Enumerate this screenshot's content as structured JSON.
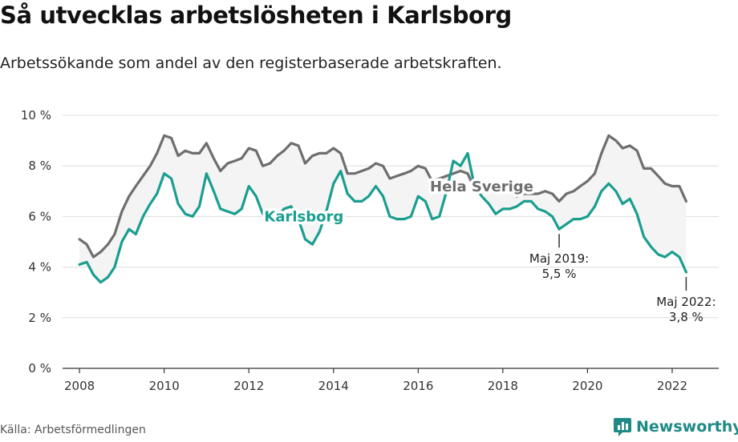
{
  "header": {
    "title": "Så utvecklas arbetslösheten i Karlsborg",
    "subtitle": "Arbetssökande som andel av den registerbaserade arbetskraften."
  },
  "footer": {
    "source": "Källa: Arbetsförmedlingen",
    "brand": "Newsworthy"
  },
  "chart_data": {
    "type": "line",
    "title": "Så utvecklas arbetslösheten i Karlsborg",
    "subtitle": "Arbetssökande som andel av den registerbaserade arbetskraften.",
    "xlabel": "",
    "ylabel": "",
    "xlim": [
      2007.6,
      2023.1
    ],
    "ylim": [
      0,
      10
    ],
    "grid": true,
    "yticks": [
      0,
      2,
      4,
      6,
      8,
      10
    ],
    "ytick_labels": [
      "0 %",
      "2 %",
      "4 %",
      "6 %",
      "8 %",
      "10 %"
    ],
    "xticks": [
      2008,
      2010,
      2012,
      2014,
      2016,
      2018,
      2020,
      2022
    ],
    "xtick_labels": [
      "2008",
      "2010",
      "2012",
      "2014",
      "2016",
      "2018",
      "2020",
      "2022"
    ],
    "shaded_between_series": true,
    "series": [
      {
        "name": "Hela Sverige",
        "label": "Hela Sverige",
        "color": "#6e6e6e",
        "points": [
          [
            2008.0,
            5.1
          ],
          [
            2008.17,
            4.9
          ],
          [
            2008.33,
            4.4
          ],
          [
            2008.5,
            4.6
          ],
          [
            2008.67,
            4.9
          ],
          [
            2008.83,
            5.3
          ],
          [
            2009.0,
            6.2
          ],
          [
            2009.17,
            6.8
          ],
          [
            2009.33,
            7.2
          ],
          [
            2009.5,
            7.6
          ],
          [
            2009.67,
            8.0
          ],
          [
            2009.83,
            8.5
          ],
          [
            2010.0,
            9.2
          ],
          [
            2010.17,
            9.1
          ],
          [
            2010.33,
            8.4
          ],
          [
            2010.5,
            8.6
          ],
          [
            2010.67,
            8.5
          ],
          [
            2010.83,
            8.5
          ],
          [
            2011.0,
            8.9
          ],
          [
            2011.17,
            8.3
          ],
          [
            2011.33,
            7.8
          ],
          [
            2011.5,
            8.1
          ],
          [
            2011.67,
            8.2
          ],
          [
            2011.83,
            8.3
          ],
          [
            2012.0,
            8.7
          ],
          [
            2012.17,
            8.6
          ],
          [
            2012.33,
            8.0
          ],
          [
            2012.5,
            8.1
          ],
          [
            2012.67,
            8.4
          ],
          [
            2012.83,
            8.6
          ],
          [
            2013.0,
            8.9
          ],
          [
            2013.17,
            8.8
          ],
          [
            2013.33,
            8.1
          ],
          [
            2013.5,
            8.4
          ],
          [
            2013.67,
            8.5
          ],
          [
            2013.83,
            8.5
          ],
          [
            2014.0,
            8.7
          ],
          [
            2014.17,
            8.5
          ],
          [
            2014.33,
            7.7
          ],
          [
            2014.5,
            7.7
          ],
          [
            2014.67,
            7.8
          ],
          [
            2014.83,
            7.9
          ],
          [
            2015.0,
            8.1
          ],
          [
            2015.17,
            8.0
          ],
          [
            2015.33,
            7.5
          ],
          [
            2015.5,
            7.6
          ],
          [
            2015.67,
            7.7
          ],
          [
            2015.83,
            7.8
          ],
          [
            2016.0,
            8.0
          ],
          [
            2016.17,
            7.9
          ],
          [
            2016.33,
            7.4
          ],
          [
            2016.5,
            7.5
          ],
          [
            2016.67,
            7.6
          ],
          [
            2016.83,
            7.7
          ],
          [
            2017.0,
            7.8
          ],
          [
            2017.17,
            7.7
          ],
          [
            2017.33,
            7.1
          ],
          [
            2017.5,
            7.1
          ],
          [
            2017.67,
            7.1
          ],
          [
            2017.83,
            7.1
          ],
          [
            2018.0,
            7.2
          ],
          [
            2018.17,
            7.0
          ],
          [
            2018.33,
            6.8
          ],
          [
            2018.5,
            6.9
          ],
          [
            2018.67,
            6.9
          ],
          [
            2018.83,
            6.9
          ],
          [
            2019.0,
            7.0
          ],
          [
            2019.17,
            6.9
          ],
          [
            2019.33,
            6.6
          ],
          [
            2019.5,
            6.9
          ],
          [
            2019.67,
            7.0
          ],
          [
            2019.83,
            7.2
          ],
          [
            2020.0,
            7.4
          ],
          [
            2020.17,
            7.7
          ],
          [
            2020.33,
            8.5
          ],
          [
            2020.5,
            9.2
          ],
          [
            2020.67,
            9.0
          ],
          [
            2020.83,
            8.7
          ],
          [
            2021.0,
            8.8
          ],
          [
            2021.17,
            8.6
          ],
          [
            2021.33,
            7.9
          ],
          [
            2021.5,
            7.9
          ],
          [
            2021.67,
            7.6
          ],
          [
            2021.83,
            7.3
          ],
          [
            2022.0,
            7.2
          ],
          [
            2022.17,
            7.2
          ],
          [
            2022.33,
            6.6
          ]
        ]
      },
      {
        "name": "Karlsborg",
        "label": "Karlsborg",
        "color": "#1a9e90",
        "points": [
          [
            2008.0,
            4.1
          ],
          [
            2008.17,
            4.2
          ],
          [
            2008.33,
            3.7
          ],
          [
            2008.5,
            3.4
          ],
          [
            2008.67,
            3.6
          ],
          [
            2008.83,
            4.0
          ],
          [
            2009.0,
            5.0
          ],
          [
            2009.17,
            5.5
          ],
          [
            2009.33,
            5.3
          ],
          [
            2009.5,
            6.0
          ],
          [
            2009.67,
            6.5
          ],
          [
            2009.83,
            6.9
          ],
          [
            2010.0,
            7.7
          ],
          [
            2010.17,
            7.5
          ],
          [
            2010.33,
            6.5
          ],
          [
            2010.5,
            6.1
          ],
          [
            2010.67,
            6.0
          ],
          [
            2010.83,
            6.4
          ],
          [
            2011.0,
            7.7
          ],
          [
            2011.17,
            7.0
          ],
          [
            2011.33,
            6.3
          ],
          [
            2011.5,
            6.2
          ],
          [
            2011.67,
            6.1
          ],
          [
            2011.83,
            6.3
          ],
          [
            2012.0,
            7.2
          ],
          [
            2012.17,
            6.8
          ],
          [
            2012.33,
            6.1
          ],
          [
            2012.5,
            6.2
          ],
          [
            2012.67,
            6.0
          ],
          [
            2012.83,
            6.3
          ],
          [
            2013.0,
            6.4
          ],
          [
            2013.17,
            5.9
          ],
          [
            2013.33,
            5.1
          ],
          [
            2013.5,
            4.9
          ],
          [
            2013.67,
            5.4
          ],
          [
            2013.83,
            6.2
          ],
          [
            2014.0,
            7.3
          ],
          [
            2014.17,
            7.8
          ],
          [
            2014.33,
            6.9
          ],
          [
            2014.5,
            6.6
          ],
          [
            2014.67,
            6.6
          ],
          [
            2014.83,
            6.8
          ],
          [
            2015.0,
            7.2
          ],
          [
            2015.17,
            6.8
          ],
          [
            2015.33,
            6.0
          ],
          [
            2015.5,
            5.9
          ],
          [
            2015.67,
            5.9
          ],
          [
            2015.83,
            6.0
          ],
          [
            2016.0,
            6.8
          ],
          [
            2016.17,
            6.6
          ],
          [
            2016.33,
            5.9
          ],
          [
            2016.5,
            6.0
          ],
          [
            2016.67,
            7.0
          ],
          [
            2016.83,
            8.2
          ],
          [
            2017.0,
            8.0
          ],
          [
            2017.17,
            8.5
          ],
          [
            2017.33,
            7.2
          ],
          [
            2017.5,
            6.8
          ],
          [
            2017.67,
            6.5
          ],
          [
            2017.83,
            6.1
          ],
          [
            2018.0,
            6.3
          ],
          [
            2018.17,
            6.3
          ],
          [
            2018.33,
            6.4
          ],
          [
            2018.5,
            6.6
          ],
          [
            2018.67,
            6.6
          ],
          [
            2018.83,
            6.3
          ],
          [
            2019.0,
            6.2
          ],
          [
            2019.17,
            6.0
          ],
          [
            2019.33,
            5.5
          ],
          [
            2019.5,
            5.7
          ],
          [
            2019.67,
            5.9
          ],
          [
            2019.83,
            5.9
          ],
          [
            2020.0,
            6.0
          ],
          [
            2020.17,
            6.4
          ],
          [
            2020.33,
            7.0
          ],
          [
            2020.5,
            7.3
          ],
          [
            2020.67,
            7.0
          ],
          [
            2020.83,
            6.5
          ],
          [
            2021.0,
            6.7
          ],
          [
            2021.17,
            6.1
          ],
          [
            2021.33,
            5.2
          ],
          [
            2021.5,
            4.8
          ],
          [
            2021.67,
            4.5
          ],
          [
            2021.83,
            4.4
          ],
          [
            2022.0,
            4.6
          ],
          [
            2022.17,
            4.4
          ],
          [
            2022.33,
            3.8
          ]
        ]
      }
    ],
    "annotations": [
      {
        "series": "Karlsborg",
        "x": 2019.33,
        "y": 5.5,
        "label_line1": "Maj 2019:",
        "label_line2": "5,5 %"
      },
      {
        "series": "Karlsborg",
        "x": 2022.33,
        "y": 3.8,
        "label_line1": "Maj 2022:",
        "label_line2": "3,8 %"
      }
    ]
  }
}
